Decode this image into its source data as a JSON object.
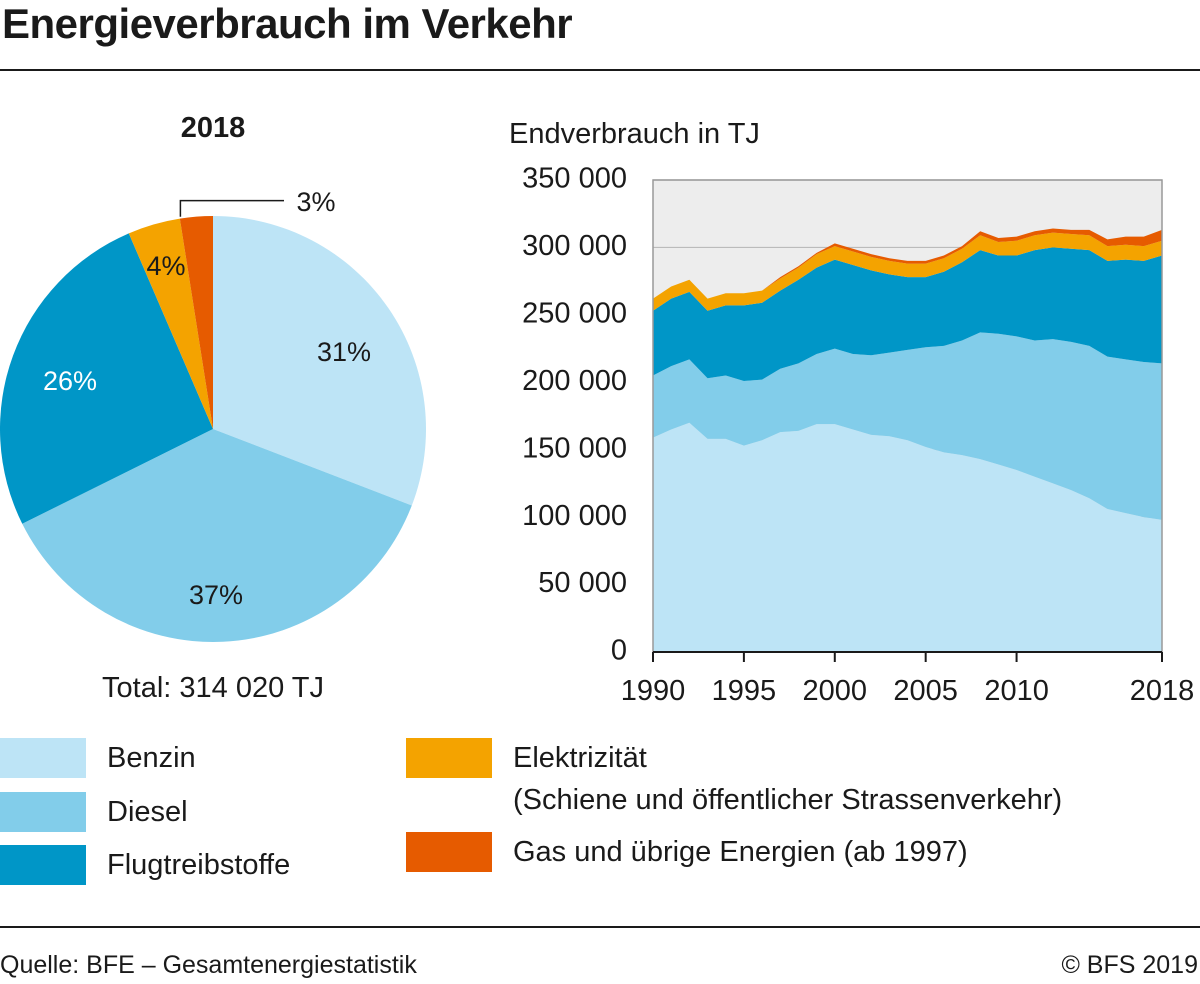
{
  "title": "Energieverbrauch im Verkehr",
  "colors": {
    "benzin": "#bde4f6",
    "diesel": "#82cdea",
    "flugtreibstoffe": "#0096c7",
    "elektrizitaet": "#f4a300",
    "gas": "#e65b00",
    "plot_bg": "#ededed"
  },
  "chart_data": [
    {
      "type": "pie",
      "title": "2018",
      "total_label": "Total: 314 020 TJ",
      "slices": [
        {
          "name": "Benzin",
          "value": 31,
          "label": "31%"
        },
        {
          "name": "Diesel",
          "value": 37,
          "label": "37%"
        },
        {
          "name": "Flugtreibstoffe",
          "value": 26,
          "label": "26%"
        },
        {
          "name": "Elektrizität",
          "value": 4,
          "label": "4%"
        },
        {
          "name": "Gas und übrige Energien",
          "value": 2.5,
          "label": "3%"
        }
      ]
    },
    {
      "type": "area",
      "stacked": true,
      "ylabel": "Endverbrauch in TJ",
      "ylim": [
        0,
        350000
      ],
      "yticks": [
        0,
        50000,
        100000,
        150000,
        200000,
        250000,
        300000,
        350000
      ],
      "ytick_labels": [
        "0",
        "50 000",
        "100 000",
        "150 000",
        "200 000",
        "250 000",
        "300 000",
        "350 000"
      ],
      "xlim": [
        1990,
        2018
      ],
      "xticks": [
        1990,
        1995,
        2000,
        2005,
        2010,
        2018
      ],
      "xtick_labels": [
        "1990",
        "1995",
        "2000",
        "2005",
        "2010",
        "2018"
      ],
      "x": [
        1990,
        1991,
        1992,
        1993,
        1994,
        1995,
        1996,
        1997,
        1998,
        1999,
        2000,
        2001,
        2002,
        2003,
        2004,
        2005,
        2006,
        2007,
        2008,
        2009,
        2010,
        2011,
        2012,
        2013,
        2014,
        2015,
        2016,
        2017,
        2018
      ],
      "series": [
        {
          "name": "Benzin",
          "values": [
            159000,
            165000,
            170000,
            158000,
            158000,
            153000,
            157000,
            163000,
            164000,
            169000,
            169000,
            165000,
            161000,
            160000,
            157000,
            152000,
            148000,
            146000,
            143000,
            139000,
            135000,
            130000,
            125000,
            120000,
            114000,
            106000,
            103000,
            100000,
            98000
          ]
        },
        {
          "name": "Diesel",
          "values": [
            46000,
            47000,
            47000,
            45000,
            47000,
            48000,
            45000,
            47000,
            50000,
            52000,
            56000,
            56000,
            59000,
            62000,
            67000,
            74000,
            79000,
            85000,
            94000,
            97000,
            99000,
            101000,
            107000,
            110000,
            113000,
            113000,
            114000,
            115000,
            116000
          ]
        },
        {
          "name": "Flugtreibstoffe",
          "values": [
            48000,
            50000,
            50000,
            50000,
            52000,
            56000,
            57000,
            58000,
            62000,
            64000,
            66000,
            66000,
            63000,
            58000,
            54000,
            52000,
            55000,
            58000,
            61000,
            58000,
            60000,
            67000,
            68000,
            69000,
            71000,
            71000,
            74000,
            75000,
            80000
          ]
        },
        {
          "name": "Elektrizität",
          "values": [
            9000,
            9000,
            9000,
            9000,
            9000,
            9000,
            9000,
            9000,
            9000,
            10000,
            10000,
            10000,
            10000,
            10000,
            10000,
            10000,
            10000,
            10000,
            11000,
            10000,
            11000,
            11000,
            11000,
            11000,
            11000,
            11000,
            11000,
            11000,
            11000
          ]
        },
        {
          "name": "Gas und übrige Energien",
          "values": [
            0,
            0,
            0,
            0,
            0,
            0,
            0,
            1000,
            1000,
            1000,
            2000,
            2000,
            2000,
            2000,
            2000,
            2000,
            2000,
            2000,
            3000,
            3000,
            3000,
            3000,
            3000,
            3000,
            4000,
            5000,
            6000,
            7000,
            8000
          ]
        }
      ]
    }
  ],
  "legend": [
    {
      "key": "benzin",
      "label": "Benzin"
    },
    {
      "key": "diesel",
      "label": "Diesel"
    },
    {
      "key": "flugtreibstoffe",
      "label": "Flugtreibstoffe"
    },
    {
      "key": "elektrizitaet",
      "label": "Elektrizität",
      "label2": "(Schiene und öffentlicher Strassenverkehr)"
    },
    {
      "key": "gas",
      "label": "Gas und übrige Energien (ab 1997)"
    }
  ],
  "footer": {
    "source": "Quelle: BFE – Gesamtenergiestatistik",
    "copyright": "© BFS 2019"
  }
}
